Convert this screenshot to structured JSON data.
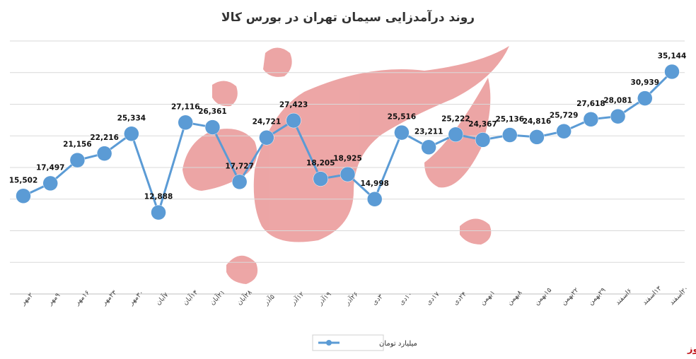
{
  "chart_data": {
    "type": "line",
    "title": "روند درآمدزایی سیمان تهران در بورس کالا",
    "categories": [
      "۲مهر",
      "۹مهر",
      "۱۶مهر",
      "۲۳مهر",
      "۳۰مهر",
      "۷آبان",
      "۱۴آبان",
      "۲۱آبان",
      "۲۸آبان",
      "۵آذر",
      "۱۲آذر",
      "۱۹آذر",
      "۲۶آذر",
      "۳دی",
      "۱۰دی",
      "۱۷دی",
      "۲۴دی",
      "۱بهمن",
      "۸بهمن",
      "۱۵بهمن",
      "۲۲بهمن",
      "۲۹بهمن",
      "۶اسفند",
      "۱۳اسفند",
      "۲۰اسفند"
    ],
    "series": [
      {
        "name": "میلیارد تومان",
        "values": [
          15502,
          17497,
          21156,
          22216,
          25334,
          12888,
          27116,
          26361,
          17727,
          24721,
          27423,
          18205,
          18925,
          14998,
          25516,
          23211,
          25222,
          24367,
          25136,
          24816,
          25729,
          27618,
          28081,
          30939,
          35144
        ],
        "labels": [
          "15,502",
          "17,497",
          "21,156",
          "22,216",
          "25,334",
          "12,888",
          "27,116",
          "26,361",
          "17,727",
          "24,721",
          "27,423",
          "18,205",
          "18,925",
          "14,998",
          "25,516",
          "23,211",
          "25,222",
          "24,367",
          "25,136",
          "24,816",
          "25,729",
          "27,618",
          "28,081",
          "30,939",
          "35,144"
        ]
      }
    ],
    "ylim": [
      0,
      40000
    ],
    "y_gridlines": [
      0,
      5000,
      10000,
      15000,
      20000,
      25000,
      30000,
      35000,
      40000
    ],
    "grid": true,
    "legend_position": "bottom-center",
    "series_color": "#5b9bd5"
  },
  "watermark_text": "بورس نیوز",
  "brand": {
    "label": "بورس نیوز",
    "color": "#c0141a"
  }
}
